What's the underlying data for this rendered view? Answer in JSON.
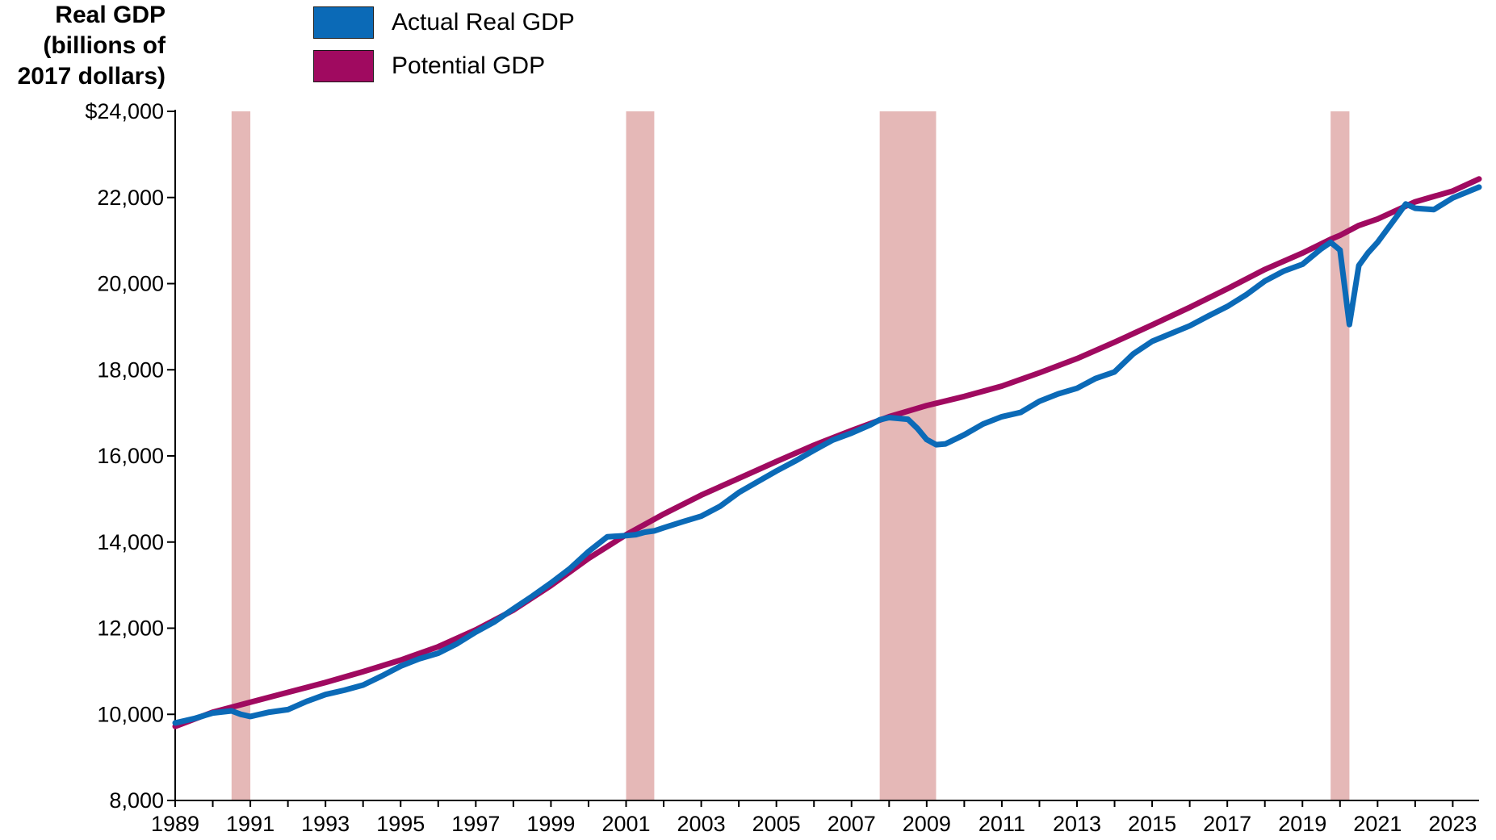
{
  "chart_data": {
    "type": "line",
    "ylabel": [
      "Real GDP",
      "(billions of",
      "2017 dollars)"
    ],
    "ylim": [
      8000,
      24000
    ],
    "xlim": [
      1989.0,
      2023.7
    ],
    "y_ticks": [
      {
        "value": 24000,
        "label": "$24,000"
      },
      {
        "value": 22000,
        "label": "22,000"
      },
      {
        "value": 20000,
        "label": "20,000"
      },
      {
        "value": 18000,
        "label": "18,000"
      },
      {
        "value": 16000,
        "label": "16,000"
      },
      {
        "value": 14000,
        "label": "14,000"
      },
      {
        "value": 12000,
        "label": "12,000"
      },
      {
        "value": 10000,
        "label": "10,000"
      },
      {
        "value": 8000,
        "label": "8,000"
      }
    ],
    "x_ticks": [
      "1989",
      "1991",
      "1993",
      "1995",
      "1997",
      "1999",
      "2001",
      "2003",
      "2005",
      "2007",
      "2009",
      "2011",
      "2013",
      "2015",
      "2017",
      "2019",
      "2021",
      "2023"
    ],
    "recessions": [
      [
        1990.5,
        1991.0
      ],
      [
        2001.0,
        2001.75
      ],
      [
        2007.75,
        2009.25
      ],
      [
        2019.75,
        2020.25
      ]
    ],
    "grid": false,
    "legend_position": "top-left",
    "series": [
      {
        "name": "Actual Real GDP",
        "color": "#0b6ab7",
        "points": [
          [
            1989.0,
            9800
          ],
          [
            1989.5,
            9900
          ],
          [
            1990.0,
            10030
          ],
          [
            1990.5,
            10080
          ],
          [
            1990.75,
            10000
          ],
          [
            1991.0,
            9950
          ],
          [
            1991.5,
            10050
          ],
          [
            1992.0,
            10110
          ],
          [
            1992.5,
            10300
          ],
          [
            1993.0,
            10460
          ],
          [
            1993.5,
            10560
          ],
          [
            1994.0,
            10680
          ],
          [
            1994.5,
            10890
          ],
          [
            1995.0,
            11120
          ],
          [
            1995.5,
            11290
          ],
          [
            1996.0,
            11420
          ],
          [
            1996.5,
            11640
          ],
          [
            1997.0,
            11910
          ],
          [
            1997.5,
            12150
          ],
          [
            1998.0,
            12450
          ],
          [
            1998.5,
            12740
          ],
          [
            1999.0,
            13050
          ],
          [
            1999.5,
            13380
          ],
          [
            2000.0,
            13780
          ],
          [
            2000.5,
            14120
          ],
          [
            2001.0,
            14150
          ],
          [
            2001.25,
            14170
          ],
          [
            2001.5,
            14230
          ],
          [
            2001.75,
            14260
          ],
          [
            2002.0,
            14330
          ],
          [
            2002.5,
            14470
          ],
          [
            2003.0,
            14600
          ],
          [
            2003.5,
            14830
          ],
          [
            2004.0,
            15150
          ],
          [
            2004.5,
            15400
          ],
          [
            2005.0,
            15650
          ],
          [
            2005.5,
            15880
          ],
          [
            2006.0,
            16130
          ],
          [
            2006.5,
            16370
          ],
          [
            2007.0,
            16530
          ],
          [
            2007.5,
            16720
          ],
          [
            2007.75,
            16840
          ],
          [
            2008.0,
            16890
          ],
          [
            2008.5,
            16850
          ],
          [
            2008.75,
            16640
          ],
          [
            2009.0,
            16380
          ],
          [
            2009.25,
            16260
          ],
          [
            2009.5,
            16280
          ],
          [
            2010.0,
            16490
          ],
          [
            2010.5,
            16740
          ],
          [
            2011.0,
            16910
          ],
          [
            2011.5,
            17010
          ],
          [
            2012.0,
            17270
          ],
          [
            2012.5,
            17440
          ],
          [
            2013.0,
            17570
          ],
          [
            2013.5,
            17800
          ],
          [
            2014.0,
            17950
          ],
          [
            2014.5,
            18370
          ],
          [
            2015.0,
            18660
          ],
          [
            2015.5,
            18840
          ],
          [
            2016.0,
            19020
          ],
          [
            2016.5,
            19250
          ],
          [
            2017.0,
            19470
          ],
          [
            2017.5,
            19740
          ],
          [
            2018.0,
            20060
          ],
          [
            2018.5,
            20290
          ],
          [
            2019.0,
            20450
          ],
          [
            2019.5,
            20810
          ],
          [
            2019.75,
            20960
          ],
          [
            2020.0,
            20780
          ],
          [
            2020.25,
            19050
          ],
          [
            2020.5,
            20420
          ],
          [
            2020.75,
            20720
          ],
          [
            2021.0,
            20960
          ],
          [
            2021.5,
            21550
          ],
          [
            2021.75,
            21850
          ],
          [
            2022.0,
            21750
          ],
          [
            2022.5,
            21720
          ],
          [
            2023.0,
            21990
          ],
          [
            2023.7,
            22240
          ]
        ]
      },
      {
        "name": "Potential GDP",
        "color": "#a00a60",
        "points": [
          [
            1989.0,
            9720
          ],
          [
            1990.0,
            10050
          ],
          [
            1991.0,
            10280
          ],
          [
            1992.0,
            10510
          ],
          [
            1993.0,
            10740
          ],
          [
            1994.0,
            10990
          ],
          [
            1995.0,
            11260
          ],
          [
            1996.0,
            11570
          ],
          [
            1997.0,
            11960
          ],
          [
            1998.0,
            12420
          ],
          [
            1999.0,
            12990
          ],
          [
            2000.0,
            13620
          ],
          [
            2001.0,
            14170
          ],
          [
            2002.0,
            14650
          ],
          [
            2003.0,
            15090
          ],
          [
            2004.0,
            15480
          ],
          [
            2005.0,
            15870
          ],
          [
            2006.0,
            16250
          ],
          [
            2007.0,
            16590
          ],
          [
            2008.0,
            16910
          ],
          [
            2009.0,
            17170
          ],
          [
            2010.0,
            17380
          ],
          [
            2011.0,
            17620
          ],
          [
            2012.0,
            17930
          ],
          [
            2013.0,
            18260
          ],
          [
            2014.0,
            18640
          ],
          [
            2015.0,
            19040
          ],
          [
            2016.0,
            19450
          ],
          [
            2017.0,
            19880
          ],
          [
            2018.0,
            20330
          ],
          [
            2019.0,
            20710
          ],
          [
            2019.75,
            21030
          ],
          [
            2020.0,
            21120
          ],
          [
            2020.5,
            21350
          ],
          [
            2021.0,
            21500
          ],
          [
            2022.0,
            21900
          ],
          [
            2023.0,
            22150
          ],
          [
            2023.7,
            22430
          ]
        ]
      }
    ]
  }
}
